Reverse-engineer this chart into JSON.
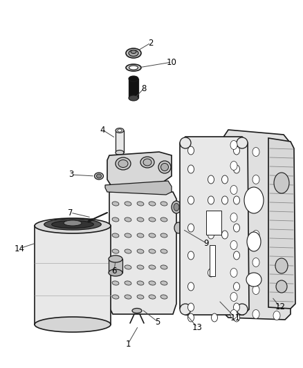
{
  "bg_color": "#ffffff",
  "line_color": "#1a1a1a",
  "gray_light": "#e8e8e8",
  "gray_mid": "#c0c0c0",
  "gray_dark": "#808080",
  "black": "#111111",
  "figsize": [
    4.38,
    5.33
  ],
  "dpi": 100,
  "labels": [
    [
      "1",
      185,
      500
    ],
    [
      "2",
      218,
      62
    ],
    [
      "3",
      103,
      255
    ],
    [
      "4",
      148,
      190
    ],
    [
      "5",
      228,
      468
    ],
    [
      "6",
      165,
      393
    ],
    [
      "7",
      102,
      310
    ],
    [
      "8",
      208,
      130
    ],
    [
      "9",
      298,
      355
    ],
    [
      "10",
      248,
      92
    ],
    [
      "11",
      340,
      462
    ],
    [
      "12",
      405,
      447
    ],
    [
      "13",
      285,
      476
    ],
    [
      "14",
      28,
      362
    ]
  ],
  "leader_lines": [
    [
      "1",
      185,
      500,
      200,
      475
    ],
    [
      "2",
      218,
      67,
      193,
      80
    ],
    [
      "3",
      103,
      255,
      140,
      258
    ],
    [
      "4",
      148,
      195,
      170,
      208
    ],
    [
      "5",
      228,
      463,
      210,
      452
    ],
    [
      "6",
      165,
      390,
      168,
      378
    ],
    [
      "7",
      102,
      310,
      140,
      313
    ],
    [
      "8",
      208,
      135,
      193,
      148
    ],
    [
      "9",
      298,
      358,
      283,
      320
    ],
    [
      "10",
      248,
      97,
      193,
      100
    ],
    [
      "11",
      340,
      460,
      318,
      432
    ],
    [
      "12",
      405,
      450,
      393,
      432
    ],
    [
      "13",
      285,
      472,
      258,
      452
    ],
    [
      "14",
      28,
      362,
      55,
      355
    ]
  ]
}
